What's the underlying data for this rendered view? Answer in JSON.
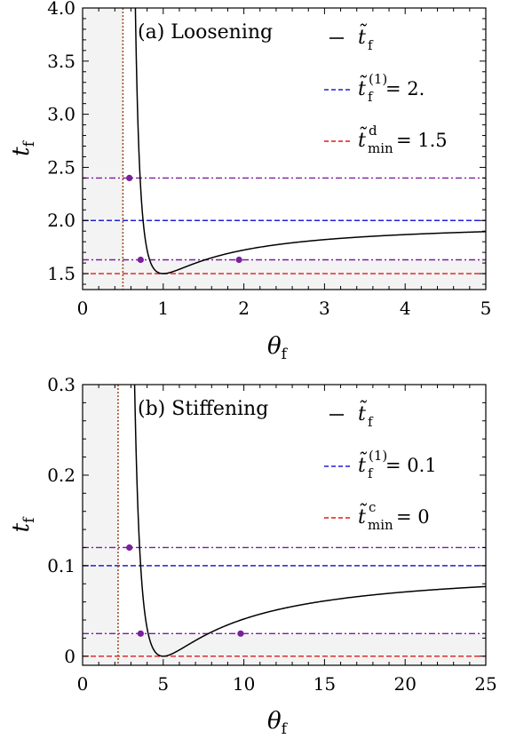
{
  "chart_data": [
    {
      "type": "line",
      "title": "(a) Loosening",
      "xlabel": "θ",
      "xlabel_sub": "f",
      "ylabel": "t",
      "ylabel_sub": "f",
      "xlim": [
        0,
        5
      ],
      "ylim": [
        1.35,
        4.0
      ],
      "xticks": [
        0,
        1,
        2,
        3,
        4,
        5
      ],
      "xtick_labels": [
        "0",
        "1",
        "2",
        "3",
        "4",
        "5"
      ],
      "yticks": [
        1.5,
        2.0,
        2.5,
        3.0,
        3.5,
        4.0
      ],
      "ytick_labels": [
        "1.5",
        "2.0",
        "2.5",
        "3.0",
        "3.5",
        "4.0"
      ],
      "curve_min": {
        "x": 1,
        "y": 1.5
      },
      "curve_pole_x": 0.5,
      "curve_asymptote": 2.0,
      "vertical_line_x": 0.5,
      "hlines": [
        {
          "y": 2.0,
          "color": "#1f1fdd",
          "style": "dashed"
        },
        {
          "y": 1.5,
          "color": "#e01b1b",
          "style": "dashed"
        },
        {
          "y": 2.4,
          "color": "#7a1f9e",
          "style": "dashdot"
        },
        {
          "y": 1.63,
          "color": "#7a1f9e",
          "style": "dashdot"
        }
      ],
      "points": [
        {
          "x": 0.58,
          "y": 2.4
        },
        {
          "x": 0.72,
          "y": 1.63
        },
        {
          "x": 1.94,
          "y": 1.63
        }
      ],
      "legend": [
        {
          "symbol": "t̃",
          "sub": "f",
          "sup": "",
          "value": "",
          "color": "#000000",
          "style": "solid"
        },
        {
          "symbol": "t̃",
          "sub": "f",
          "sup": "(1)",
          "value": " = 2.",
          "color": "#1f1fdd",
          "style": "dashed"
        },
        {
          "symbol": "t̃",
          "sub": "min",
          "sup": "d",
          "value": " = 1.5",
          "color": "#e01b1b",
          "style": "dashed"
        }
      ],
      "legend_position": "top-right",
      "colors": {
        "curve": "#000000",
        "vline": "#a0522d",
        "point": "#7a1f9e",
        "shade": "#f3f3f3"
      }
    },
    {
      "type": "line",
      "title": "(b) Stiffening",
      "xlabel": "θ",
      "xlabel_sub": "f",
      "ylabel": "t",
      "ylabel_sub": "f",
      "xlim": [
        0,
        25
      ],
      "ylim": [
        -0.01,
        0.3
      ],
      "xticks": [
        0,
        5,
        10,
        15,
        20,
        25
      ],
      "xtick_labels": [
        "0",
        "5",
        "10",
        "15",
        "20",
        "25"
      ],
      "yticks": [
        0,
        0.1,
        0.2,
        0.3
      ],
      "ytick_labels": [
        "0",
        "0.1",
        "0.2",
        "0.3"
      ],
      "curve_min": {
        "x": 5,
        "y": 0
      },
      "curve_pole_x": 2.2,
      "curve_asymptote": 0.1,
      "vertical_line_x": 2.2,
      "hlines": [
        {
          "y": 0.1,
          "color": "#1f1fdd",
          "style": "dashed"
        },
        {
          "y": 0,
          "color": "#e01b1b",
          "style": "dashed"
        },
        {
          "y": 0.12,
          "color": "#7a1f9e",
          "style": "dashdot"
        },
        {
          "y": 0.025,
          "color": "#7a1f9e",
          "style": "dashdot"
        }
      ],
      "points": [
        {
          "x": 2.9,
          "y": 0.12
        },
        {
          "x": 3.6,
          "y": 0.025
        },
        {
          "x": 9.8,
          "y": 0.025
        }
      ],
      "legend": [
        {
          "symbol": "t̃",
          "sub": "f",
          "sup": "",
          "value": "",
          "color": "#000000",
          "style": "solid"
        },
        {
          "symbol": "t̃",
          "sub": "f",
          "sup": "(1)",
          "value": " = 0.1",
          "color": "#1f1fdd",
          "style": "dashed"
        },
        {
          "symbol": "t̃",
          "sub": "min",
          "sup": "c",
          "value": " = 0",
          "color": "#e01b1b",
          "style": "dashed"
        }
      ],
      "legend_position": "top-right",
      "colors": {
        "curve": "#000000",
        "vline": "#a0522d",
        "point": "#7a1f9e",
        "shade": "#f3f3f3"
      }
    }
  ]
}
